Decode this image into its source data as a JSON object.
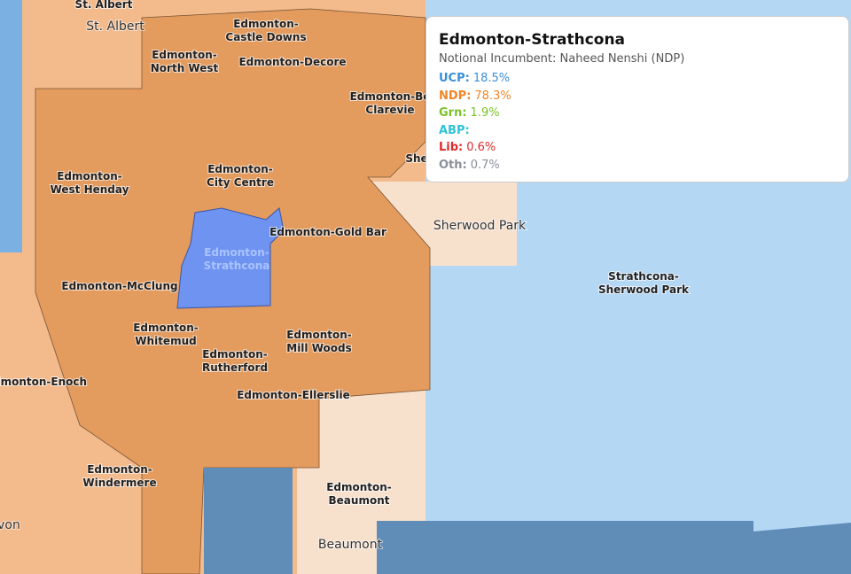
{
  "map_labels": [
    {
      "lines": [
        "St. Albert"
      ],
      "style": "bold"
    },
    {
      "lines": [
        "St. Albert"
      ],
      "style": "place"
    },
    {
      "lines": [
        "Edmonton-",
        "Castle Downs"
      ],
      "style": "bold"
    },
    {
      "lines": [
        "Edmonton-",
        "North West"
      ],
      "style": "bold"
    },
    {
      "lines": [
        "Edmonton-Decore"
      ],
      "style": "bold"
    },
    {
      "lines": [
        "Edmonton-Be",
        "Clarevie"
      ],
      "style": "bold"
    },
    {
      "lines": [
        "Edmonton-",
        "West Henday"
      ],
      "style": "bold"
    },
    {
      "lines": [
        "Edmonton-",
        "City Centre"
      ],
      "style": "bold"
    },
    {
      "lines": [
        "Edmonton-Gold Bar"
      ],
      "style": "bold"
    },
    {
      "lines": [
        "Edmonton-",
        "Strathcona"
      ],
      "style": "selected"
    },
    {
      "lines": [
        "Edmonton-McClung"
      ],
      "style": "bold"
    },
    {
      "lines": [
        "Edmonton-",
        "Whitemud"
      ],
      "style": "bold"
    },
    {
      "lines": [
        "Edmonton-",
        "Rutherford"
      ],
      "style": "bold"
    },
    {
      "lines": [
        "Edmonton-",
        "Mill Woods"
      ],
      "style": "bold"
    },
    {
      "lines": [
        "dmonton-Enoch"
      ],
      "style": "bold"
    },
    {
      "lines": [
        "Edmonton-Ellerslie"
      ],
      "style": "bold"
    },
    {
      "lines": [
        "Edmonton-",
        "Windermere"
      ],
      "style": "bold"
    },
    {
      "lines": [
        "Edmonton-",
        "Beaumont"
      ],
      "style": "bold"
    },
    {
      "lines": [
        "Beaumont"
      ],
      "style": "place"
    },
    {
      "lines": [
        "von"
      ],
      "style": "place"
    },
    {
      "lines": [
        "Sherwood Park"
      ],
      "style": "place"
    },
    {
      "lines": [
        "She"
      ],
      "style": "bold"
    },
    {
      "lines": [
        "Strathcona-",
        "Sherwood Park"
      ],
      "style": "bold"
    }
  ],
  "tooltip": {
    "title": "Edmonton-Strathcona",
    "incumbent": "Notional Incumbent: Naheed Nenshi (NDP)",
    "results": [
      {
        "party": "UCP:",
        "share": "18.5%",
        "color": "#3a8fd9"
      },
      {
        "party": "NDP:",
        "share": "78.3%",
        "color": "#f0862a"
      },
      {
        "party": "Grn:",
        "share": "1.9%",
        "color": "#7cc22a"
      },
      {
        "party": "ABP:",
        "color": "#2ec4d6"
      },
      {
        "party": "Lib:",
        "share": "0.6%",
        "color": "#e02b2b"
      },
      {
        "party": "Oth:",
        "share": "0.7%",
        "color": "#8a9099"
      }
    ]
  }
}
